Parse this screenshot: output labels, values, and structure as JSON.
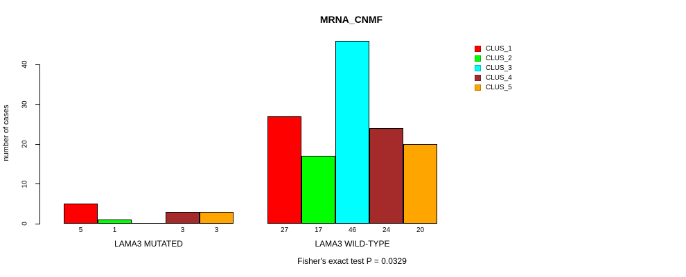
{
  "chart_data": {
    "type": "bar",
    "title": "MRNA_CNMF",
    "ylabel": "number of cases",
    "xlabel": "",
    "categories": [
      "LAMA3 MUTATED",
      "LAMA3 WILD-TYPE"
    ],
    "series": [
      {
        "name": "CLUS_1",
        "color": "#FF0000",
        "values": [
          5,
          27
        ]
      },
      {
        "name": "CLUS_2",
        "color": "#00FF00",
        "values": [
          1,
          17
        ]
      },
      {
        "name": "CLUS_3",
        "color": "#00FFFF",
        "values": [
          0,
          46
        ]
      },
      {
        "name": "CLUS_4",
        "color": "#A52A2A",
        "values": [
          3,
          24
        ]
      },
      {
        "name": "CLUS_5",
        "color": "#FFA500",
        "values": [
          3,
          20
        ]
      }
    ],
    "bar_value_labels": [
      [
        "5",
        "1",
        "",
        "3",
        "3"
      ],
      [
        "27",
        "17",
        "46",
        "24",
        "20"
      ]
    ],
    "yticks": [
      0,
      10,
      20,
      30,
      40
    ],
    "ylim": [
      0,
      46
    ],
    "grid": false,
    "legend_position": "right",
    "annotation": "Fisher's exact test P = 0.0329"
  },
  "colors": {
    "background": "#FFFFFF",
    "axis": "#000000",
    "text": "#000000",
    "bar_border": "#000000"
  }
}
